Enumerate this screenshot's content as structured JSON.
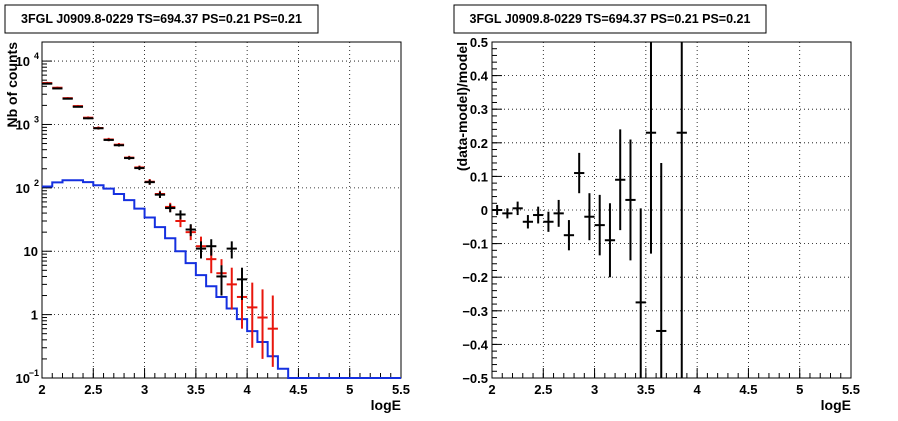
{
  "chart_data": [
    {
      "type": "histogram-with-errorbars",
      "title": "3FGL J0909.8-0229 TS=694.37 PS=0.21 PS=0.21",
      "xlabel": "logE",
      "ylabel": "Nb of counts",
      "xlim": [
        2,
        5.5
      ],
      "ylim": [
        0.1,
        20000
      ],
      "yscale": "log",
      "grid": true,
      "xticks": [
        {
          "v": 2,
          "label": "2"
        },
        {
          "v": 2.5,
          "label": "2.5"
        },
        {
          "v": 3,
          "label": "3"
        },
        {
          "v": 3.5,
          "label": "3.5"
        },
        {
          "v": 4,
          "label": "4"
        },
        {
          "v": 4.5,
          "label": "4.5"
        },
        {
          "v": 5,
          "label": "5"
        },
        {
          "v": 5.5,
          "label": "5.5"
        }
      ],
      "yticks": [
        {
          "v": 0.1,
          "label": "10",
          "sup": "−1"
        },
        {
          "v": 1,
          "label": "1",
          "sup": ""
        },
        {
          "v": 10,
          "label": "10",
          "sup": ""
        },
        {
          "v": 100,
          "label": "10",
          "sup": "2"
        },
        {
          "v": 1000,
          "label": "10",
          "sup": "3"
        },
        {
          "v": 10000,
          "label": "10",
          "sup": "4"
        }
      ],
      "bin_width": 0.1,
      "series": [
        {
          "role": "data",
          "color": "#000000",
          "points": [
            {
              "x": 2.05,
              "y": 4400
            },
            {
              "x": 2.15,
              "y": 3700
            },
            {
              "x": 2.25,
              "y": 2550
            },
            {
              "x": 2.35,
              "y": 1900
            },
            {
              "x": 2.45,
              "y": 1250
            },
            {
              "x": 2.55,
              "y": 870
            },
            {
              "x": 2.65,
              "y": 570
            },
            {
              "x": 2.75,
              "y": 470
            },
            {
              "x": 2.85,
              "y": 295
            },
            {
              "x": 2.95,
              "y": 205
            },
            {
              "x": 3.05,
              "y": 123
            },
            {
              "x": 3.15,
              "y": 78
            },
            {
              "x": 3.25,
              "y": 48
            },
            {
              "x": 3.35,
              "y": 38
            },
            {
              "x": 3.45,
              "y": 22
            },
            {
              "x": 3.55,
              "y": 11
            },
            {
              "x": 3.65,
              "y": 12
            },
            {
              "x": 3.75,
              "y": 4
            },
            {
              "x": 3.85,
              "y": 11
            },
            {
              "x": 3.95,
              "y": 3.6
            }
          ]
        },
        {
          "role": "model-total",
          "color": "#e8160c",
          "points": [
            {
              "x": 2.05,
              "y": 4500,
              "lo": 4300,
              "hi": 4700
            },
            {
              "x": 2.15,
              "y": 3800,
              "lo": 3650,
              "hi": 3950
            },
            {
              "x": 2.25,
              "y": 2600,
              "lo": 2500,
              "hi": 2700
            },
            {
              "x": 2.35,
              "y": 1950,
              "lo": 1870,
              "hi": 2030
            },
            {
              "x": 2.45,
              "y": 1280,
              "lo": 1220,
              "hi": 1340
            },
            {
              "x": 2.55,
              "y": 880,
              "lo": 830,
              "hi": 930
            },
            {
              "x": 2.65,
              "y": 580,
              "lo": 545,
              "hi": 615
            },
            {
              "x": 2.75,
              "y": 480,
              "lo": 450,
              "hi": 510
            },
            {
              "x": 2.85,
              "y": 300,
              "lo": 280,
              "hi": 320
            },
            {
              "x": 2.95,
              "y": 210,
              "lo": 195,
              "hi": 225
            },
            {
              "x": 3.05,
              "y": 125,
              "lo": 112,
              "hi": 138
            },
            {
              "x": 3.15,
              "y": 80,
              "lo": 70,
              "hi": 90
            },
            {
              "x": 3.25,
              "y": 50,
              "lo": 42,
              "hi": 58
            },
            {
              "x": 3.35,
              "y": 30,
              "lo": 24,
              "hi": 36
            },
            {
              "x": 3.45,
              "y": 20,
              "lo": 15,
              "hi": 26
            },
            {
              "x": 3.55,
              "y": 12,
              "lo": 8,
              "hi": 17
            },
            {
              "x": 3.65,
              "y": 7.5,
              "lo": 4.5,
              "hi": 11
            },
            {
              "x": 3.75,
              "y": 4.5,
              "lo": 2.2,
              "hi": 7.5
            },
            {
              "x": 3.85,
              "y": 3,
              "lo": 1.2,
              "hi": 5.5
            },
            {
              "x": 3.95,
              "y": 1.9,
              "lo": 0.6,
              "hi": 4
            },
            {
              "x": 4.05,
              "y": 1.3,
              "lo": 0.3,
              "hi": 3.2
            },
            {
              "x": 4.15,
              "y": 0.9,
              "lo": 0.2,
              "hi": 2.5
            },
            {
              "x": 4.25,
              "y": 0.6,
              "lo": 0.15,
              "hi": 2.0
            }
          ]
        },
        {
          "role": "model-background",
          "color": "#1530e0",
          "step_edges": [
            2.0,
            2.1,
            2.2,
            2.3,
            2.4,
            2.5,
            2.6,
            2.7,
            2.8,
            2.9,
            3.0,
            3.1,
            3.2,
            3.3,
            3.4,
            3.5,
            3.6,
            3.7,
            3.8,
            3.9,
            4.0,
            4.1,
            4.2,
            4.3,
            4.4,
            5.5
          ],
          "step_values": [
            105,
            122,
            132,
            132,
            123,
            110,
            97,
            80,
            64,
            47,
            34,
            24,
            16,
            10,
            6.5,
            4.2,
            2.8,
            1.9,
            1.25,
            0.85,
            0.55,
            0.37,
            0.22,
            0.14,
            0.1
          ]
        }
      ]
    },
    {
      "type": "residuals-with-errorbars",
      "title": "3FGL J0909.8-0229 TS=694.37 PS=0.21 PS=0.21",
      "xlabel": "logE",
      "ylabel": "(data-model)/model",
      "xlim": [
        2,
        5.5
      ],
      "ylim": [
        -0.5,
        0.5
      ],
      "grid": true,
      "xticks": [
        {
          "v": 2,
          "label": "2"
        },
        {
          "v": 2.5,
          "label": "2.5"
        },
        {
          "v": 3,
          "label": "3"
        },
        {
          "v": 3.5,
          "label": "3.5"
        },
        {
          "v": 4,
          "label": "4"
        },
        {
          "v": 4.5,
          "label": "4.5"
        },
        {
          "v": 5,
          "label": "5"
        },
        {
          "v": 5.5,
          "label": "5.5"
        }
      ],
      "yticks": [
        {
          "v": 0.5,
          "label": "0.5"
        },
        {
          "v": 0.4,
          "label": "0.4"
        },
        {
          "v": 0.3,
          "label": "0.3"
        },
        {
          "v": 0.2,
          "label": "0.2"
        },
        {
          "v": 0.1,
          "label": "0.1"
        },
        {
          "v": 0,
          "label": "0"
        },
        {
          "v": -0.1,
          "label": "−0.1"
        },
        {
          "v": -0.2,
          "label": "−0.2"
        },
        {
          "v": -0.3,
          "label": "−0.3"
        },
        {
          "v": -0.4,
          "label": "−0.4"
        },
        {
          "v": -0.5,
          "label": "−0.5"
        }
      ],
      "bin_width": 0.1,
      "points": [
        {
          "x": 2.05,
          "y": 0.0,
          "err": 0.015
        },
        {
          "x": 2.15,
          "y": -0.01,
          "err": 0.015
        },
        {
          "x": 2.25,
          "y": 0.005,
          "err": 0.02
        },
        {
          "x": 2.35,
          "y": -0.035,
          "err": 0.02
        },
        {
          "x": 2.45,
          "y": -0.015,
          "err": 0.025
        },
        {
          "x": 2.55,
          "y": -0.035,
          "err": 0.03
        },
        {
          "x": 2.65,
          "y": -0.01,
          "err": 0.04
        },
        {
          "x": 2.75,
          "y": -0.075,
          "err": 0.045
        },
        {
          "x": 2.85,
          "y": 0.11,
          "err": 0.06
        },
        {
          "x": 2.95,
          "y": -0.02,
          "err": 0.07
        },
        {
          "x": 3.05,
          "y": -0.045,
          "err": 0.09
        },
        {
          "x": 3.15,
          "y": -0.09,
          "err": 0.11
        },
        {
          "x": 3.25,
          "y": 0.09,
          "err": 0.15
        },
        {
          "x": 3.35,
          "y": 0.03,
          "err": 0.18
        },
        {
          "x": 3.45,
          "y": -0.275,
          "err": 0.28
        },
        {
          "x": 3.55,
          "y": 0.23,
          "err": 0.36
        },
        {
          "x": 3.65,
          "y": -0.36,
          "err": 0.5
        },
        {
          "x": 3.85,
          "y": 0.23,
          "err": 0.75
        }
      ]
    }
  ]
}
